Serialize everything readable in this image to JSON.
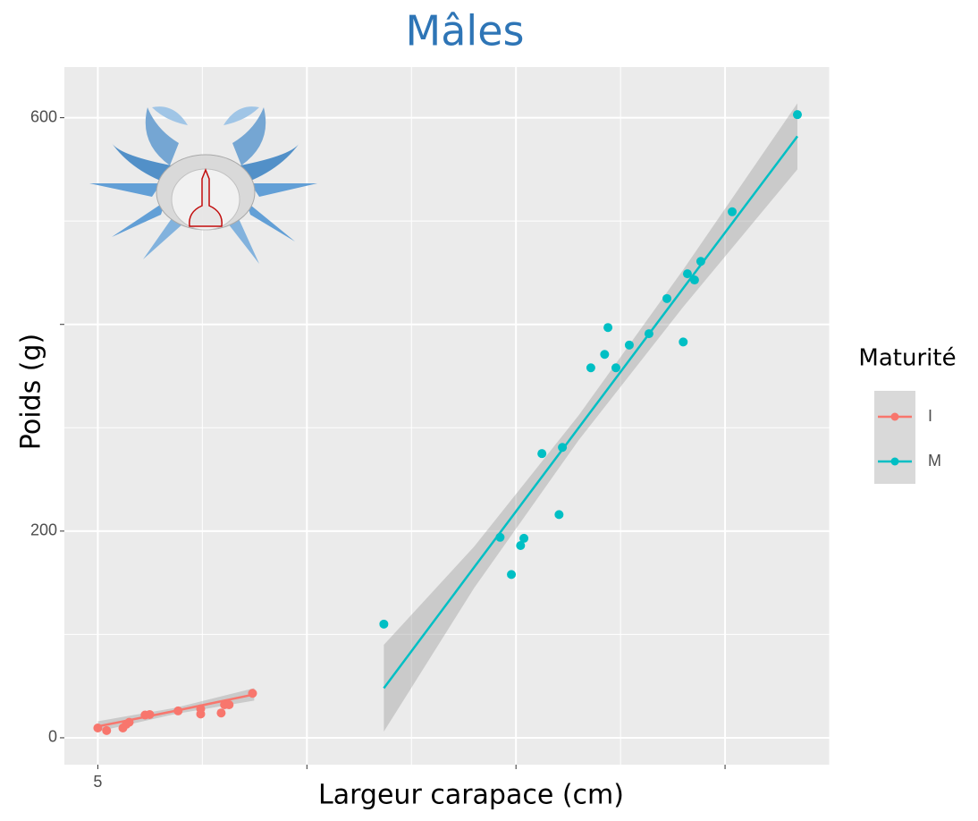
{
  "chart_data": {
    "type": "scatter",
    "title": "Mâles",
    "x_label": "Largeur carapace (cm)",
    "y_label": "Poids (g)",
    "legend_title": "Maturité",
    "xlim": [
      4.2,
      22.5
    ],
    "ylim": [
      -26,
      649
    ],
    "xticks": [
      5,
      {
        "value": 10,
        "label": null
      },
      {
        "value": 15,
        "label": null
      },
      {
        "value": 20,
        "label": null
      }
    ],
    "yticks": [
      0,
      200,
      {
        "value": 400,
        "label": null
      },
      600
    ],
    "grid": true,
    "series": [
      {
        "name": "I",
        "color": "#F8766D",
        "x": [
          5.0,
          5.21,
          5.6,
          5.68,
          5.75,
          6.13,
          6.24,
          6.92,
          7.46,
          7.46,
          7.95,
          8.03,
          8.14,
          8.7
        ],
        "values": [
          9.5,
          7,
          9.5,
          13,
          15,
          22,
          22.5,
          26,
          23,
          28,
          24,
          32,
          32,
          43
        ],
        "fit_x": [
          5.0,
          6.85,
          8.74
        ],
        "fit": [
          11,
          26,
          42
        ],
        "fit_lower": [
          6,
          23,
          36
        ],
        "fit_upper": [
          16,
          29,
          48
        ]
      },
      {
        "name": "M",
        "color": "#00BFC4",
        "x": [
          11.84,
          14.62,
          14.89,
          15.11,
          15.19,
          15.62,
          16.03,
          16.11,
          16.79,
          17.12,
          17.2,
          17.39,
          17.71,
          18.18,
          18.61,
          19.0,
          19.1,
          19.27,
          19.42,
          20.17,
          21.73
        ],
        "values": [
          110,
          194,
          158,
          186,
          193,
          275,
          216,
          281,
          358,
          371,
          397,
          358,
          380,
          391,
          425,
          383,
          449,
          443,
          461,
          509,
          603
        ],
        "fit_x": [
          11.84,
          14,
          16.5,
          19,
          21.73
        ],
        "fit": [
          48,
          165,
          300,
          435,
          582
        ],
        "fit_lower": [
          6,
          145,
          288,
          417,
          550
        ],
        "fit_upper": [
          90,
          185,
          312,
          453,
          614
        ]
      }
    ]
  }
}
